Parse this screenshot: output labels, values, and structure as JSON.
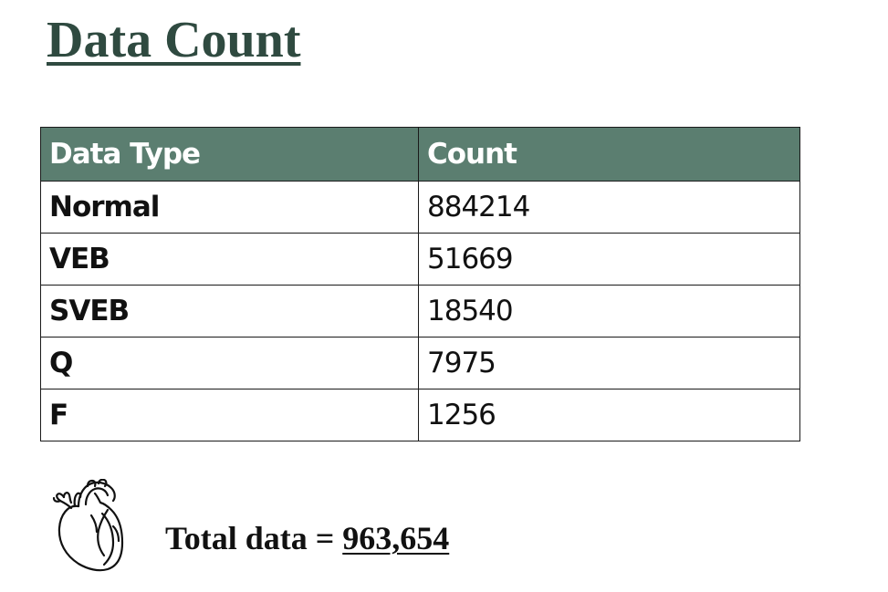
{
  "title": "Data Count",
  "table": {
    "headers": [
      "Data Type",
      "Count"
    ],
    "rows": [
      {
        "type": "Normal",
        "count": "884214"
      },
      {
        "type": "VEB",
        "count": "51669"
      },
      {
        "type": "SVEB",
        "count": "18540"
      },
      {
        "type": "Q",
        "count": "7975"
      },
      {
        "type": "F",
        "count": "1256"
      }
    ]
  },
  "total": {
    "label": "Total data = ",
    "value": "963,654"
  },
  "icons": {
    "heart": "anatomical-heart-icon"
  },
  "colors": {
    "title": "#2f4a40",
    "header_background": "#5b7e70",
    "header_text": "#ffffff"
  }
}
